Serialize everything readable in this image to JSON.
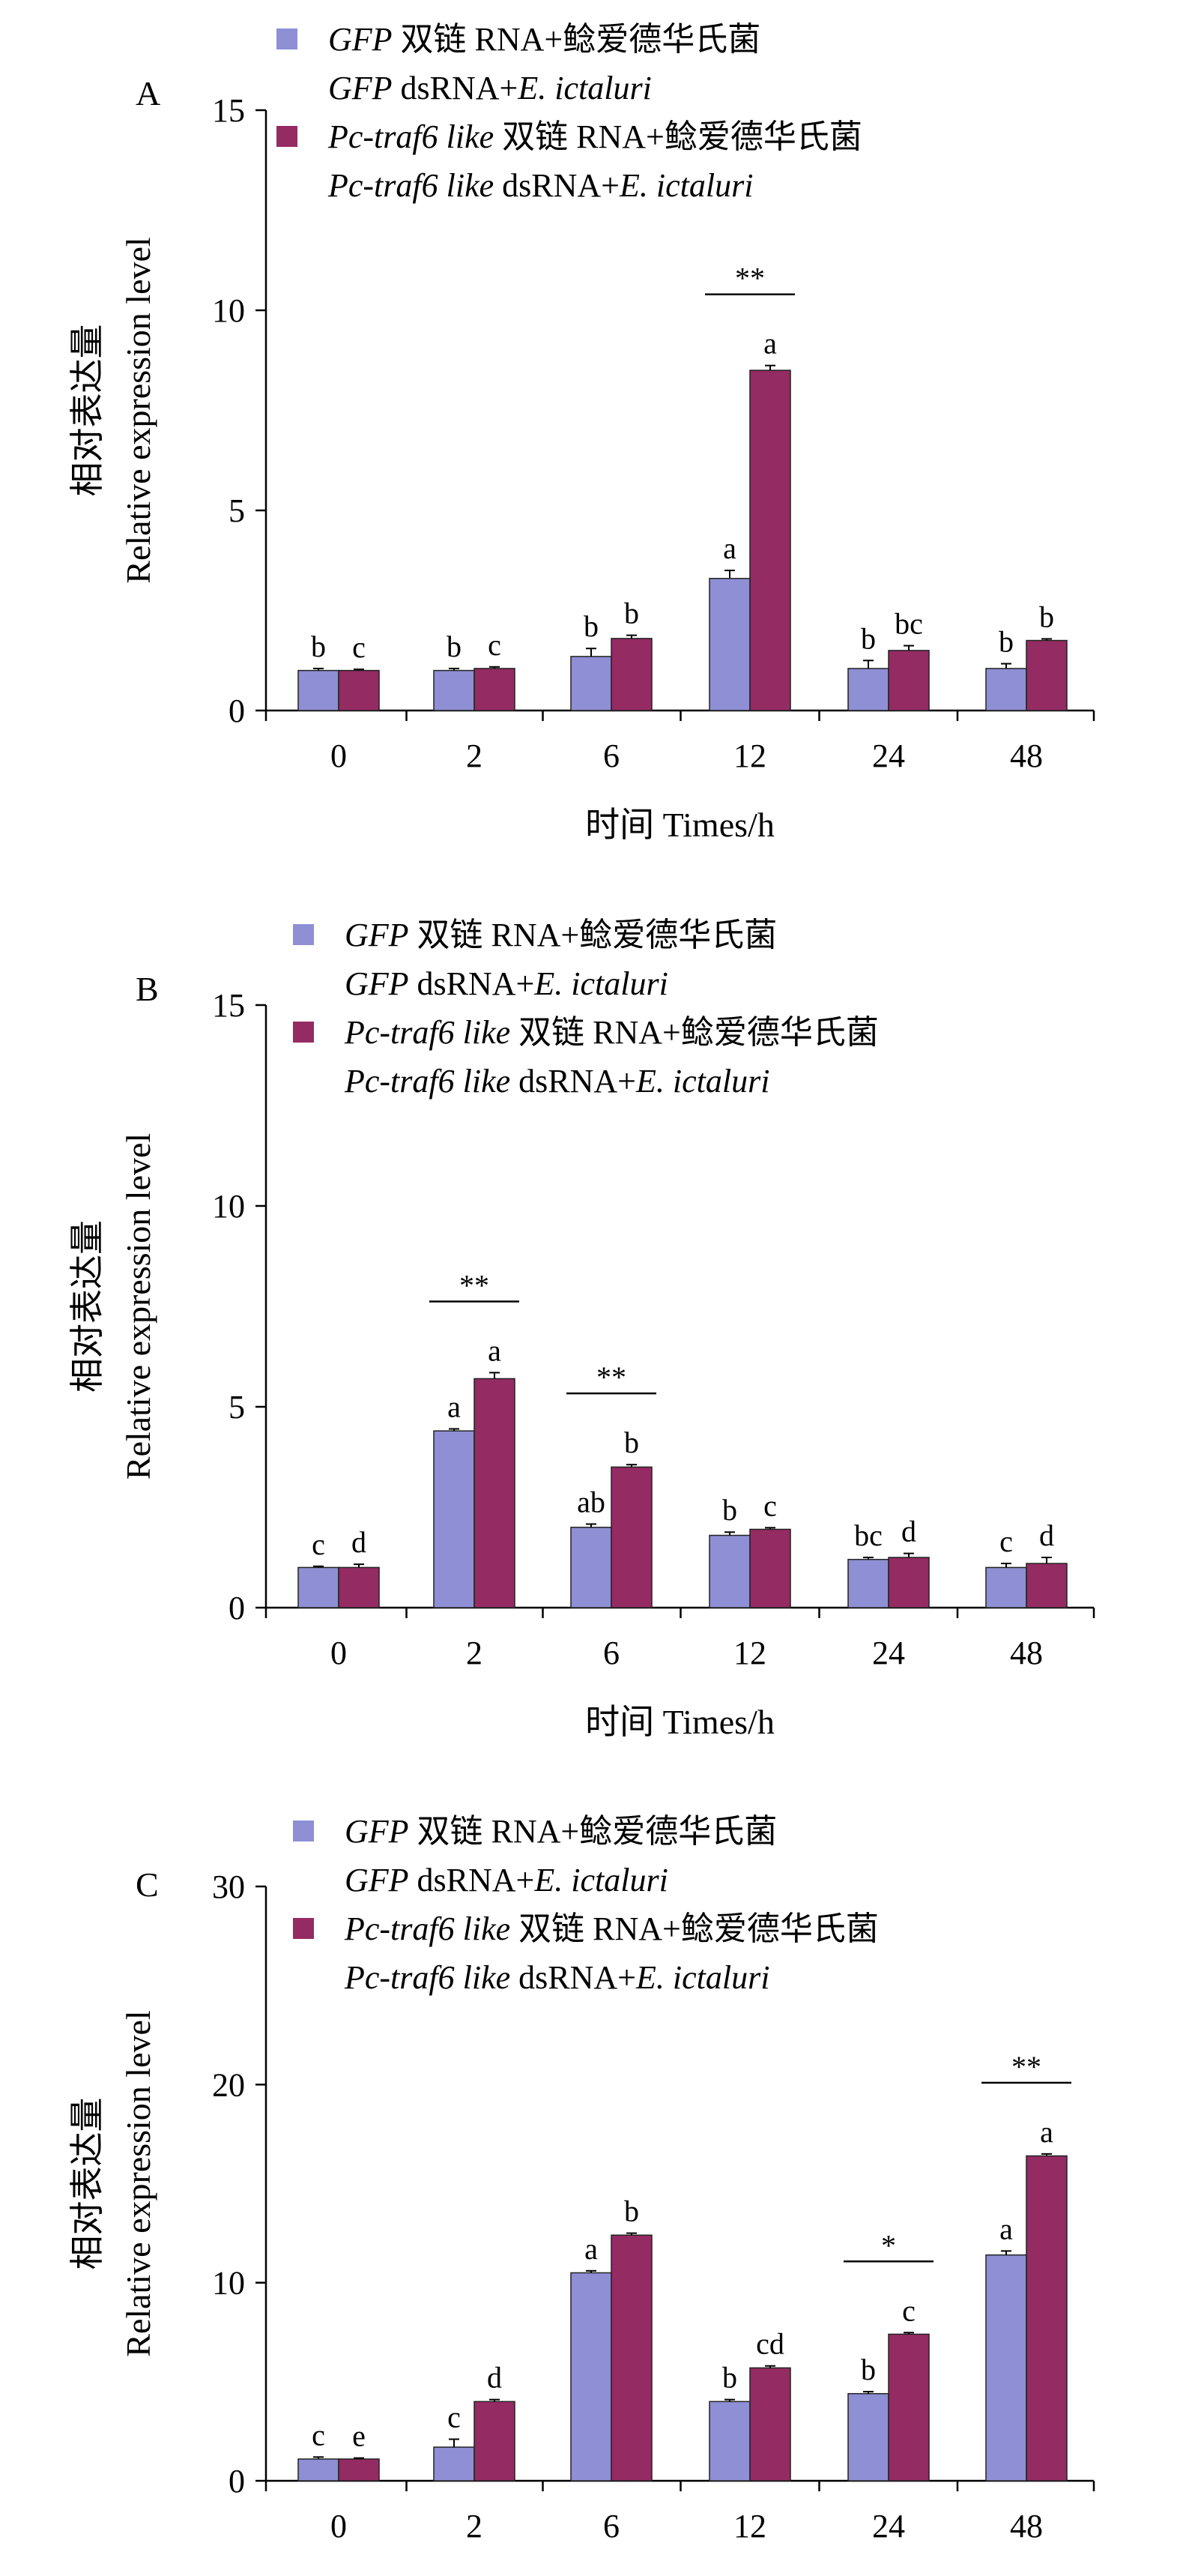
{
  "legend": {
    "gfp_name": "GFP",
    "gfp_zh": " 双链 RNA+鲶爱德华氏菌",
    "gfp_en_a": " dsRNA+",
    "gfp_en_b": "E. ictaluri",
    "pc_name": "Pc-traf6 like",
    "pc_zh": " 双链 RNA+鲶爱德华氏菌",
    "pc_en_a": " dsRNA+",
    "pc_en_b": "E. ictaluri"
  },
  "axes": {
    "ylabel_zh": "相对表达量",
    "ylabel_en": "Relative expression level",
    "xlabel": "时间 Times/h"
  },
  "colors": {
    "gfp": "#8E8FD4",
    "pc": "#952B63"
  },
  "chart_data": [
    {
      "type": "bar",
      "panel": "A",
      "categories": [
        "0",
        "2",
        "6",
        "12",
        "24",
        "48"
      ],
      "ylim": [
        0,
        15
      ],
      "yticks": [
        0,
        5,
        10,
        15
      ],
      "series": [
        {
          "name": "GFP dsRNA+E. ictaluri",
          "values": [
            1.0,
            1.0,
            1.35,
            3.3,
            1.05,
            1.05
          ],
          "errors": [
            0.05,
            0.05,
            0.2,
            0.2,
            0.2,
            0.12
          ],
          "letters": [
            "b",
            "b",
            "b",
            "a",
            "b",
            "b"
          ]
        },
        {
          "name": "Pc-traf6 like dsRNA+E. ictaluri",
          "values": [
            1.0,
            1.05,
            1.8,
            8.5,
            1.5,
            1.75
          ],
          "errors": [
            0.03,
            0.04,
            0.08,
            0.12,
            0.12,
            0.04
          ],
          "letters": [
            "c",
            "c",
            "b",
            "a",
            "bc",
            "b"
          ]
        }
      ],
      "significance": [
        {
          "category": "12",
          "label": "**"
        }
      ]
    },
    {
      "type": "bar",
      "panel": "B",
      "categories": [
        "0",
        "2",
        "6",
        "12",
        "24",
        "48"
      ],
      "ylim": [
        0,
        15
      ],
      "yticks": [
        0,
        5,
        10,
        15
      ],
      "series": [
        {
          "name": "GFP dsRNA+E. ictaluri",
          "values": [
            1.0,
            4.4,
            2.0,
            1.8,
            1.2,
            1.0
          ],
          "errors": [
            0.03,
            0.05,
            0.08,
            0.08,
            0.05,
            0.1
          ],
          "letters": [
            "c",
            "a",
            "ab",
            "b",
            "bc",
            "c"
          ]
        },
        {
          "name": "Pc-traf6 like dsRNA+E. ictaluri",
          "values": [
            1.0,
            5.7,
            3.5,
            1.95,
            1.25,
            1.1
          ],
          "errors": [
            0.08,
            0.15,
            0.06,
            0.04,
            0.1,
            0.15
          ],
          "letters": [
            "d",
            "a",
            "b",
            "c",
            "d",
            "d"
          ]
        }
      ],
      "significance": [
        {
          "category": "2",
          "label": "**"
        },
        {
          "category": "6",
          "label": "**"
        }
      ]
    },
    {
      "type": "bar",
      "panel": "C",
      "categories": [
        "0",
        "2",
        "6",
        "12",
        "24",
        "48"
      ],
      "ylim": [
        0,
        30
      ],
      "yticks": [
        0,
        10,
        20,
        30
      ],
      "series": [
        {
          "name": "GFP dsRNA+E. ictaluri",
          "values": [
            1.1,
            1.7,
            10.5,
            4.0,
            4.4,
            11.4
          ],
          "errors": [
            0.1,
            0.4,
            0.1,
            0.1,
            0.1,
            0.2
          ],
          "letters": [
            "c",
            "c",
            "a",
            "b",
            "b",
            "a"
          ]
        },
        {
          "name": "Pc-traf6 like dsRNA+E. ictaluri",
          "values": [
            1.1,
            4.0,
            12.4,
            5.7,
            7.4,
            16.4
          ],
          "errors": [
            0.05,
            0.1,
            0.1,
            0.1,
            0.08,
            0.1
          ],
          "letters": [
            "e",
            "d",
            "b",
            "cd",
            "c",
            "a"
          ]
        }
      ],
      "significance": [
        {
          "category": "24",
          "label": "*"
        },
        {
          "category": "48",
          "label": "**"
        }
      ]
    }
  ]
}
